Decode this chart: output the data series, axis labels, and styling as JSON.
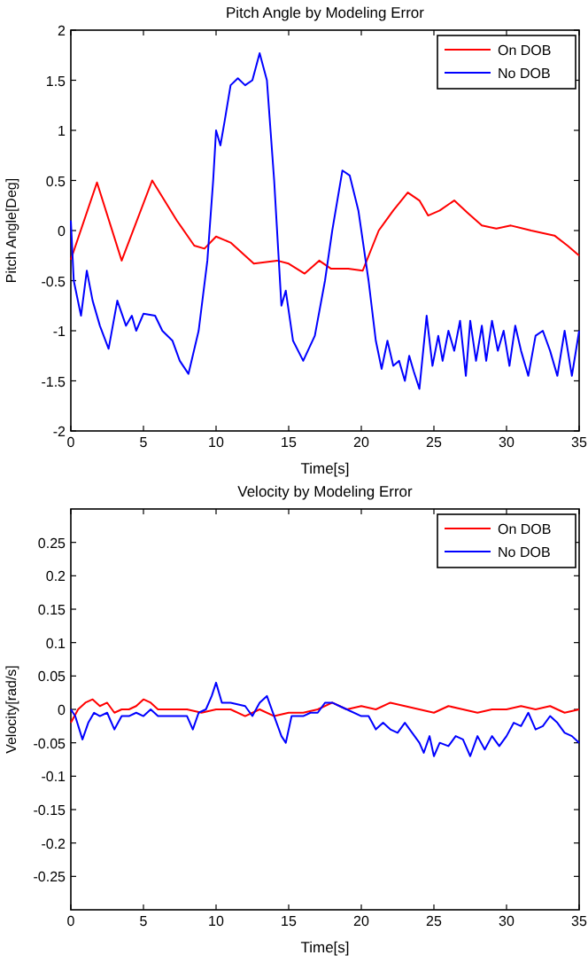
{
  "chart_data": [
    {
      "type": "line",
      "title": "Pitch Angle by Modeling Error",
      "xlabel": "Time[s]",
      "ylabel": "Pitch Angle[Deg]",
      "xlim": [
        0,
        35
      ],
      "ylim": [
        -2,
        2
      ],
      "xticks": [
        0,
        5,
        10,
        15,
        20,
        25,
        30,
        35
      ],
      "yticks": [
        -2,
        -1.5,
        -1,
        -0.5,
        0,
        0.5,
        1,
        1.5,
        2
      ],
      "grid": false,
      "legend": "top right",
      "series": [
        {
          "name": "On DOB",
          "color": "#ff0000",
          "x": [
            0,
            1.8,
            3.5,
            5.6,
            7.3,
            8.5,
            9.2,
            10,
            11,
            12.6,
            14.2,
            15,
            16.1,
            17.1,
            17.9,
            19.1,
            20.1,
            21.2,
            22.2,
            23.2,
            24,
            24.6,
            25.4,
            26.4,
            27.3,
            28.3,
            29.3,
            30.3,
            31.7,
            33.3,
            34.2,
            35
          ],
          "values": [
            -0.29,
            0.48,
            -0.3,
            0.5,
            0.1,
            -0.15,
            -0.18,
            -0.06,
            -0.12,
            -0.33,
            -0.3,
            -0.33,
            -0.43,
            -0.3,
            -0.38,
            -0.38,
            -0.4,
            0,
            0.2,
            0.38,
            0.3,
            0.15,
            0.2,
            0.3,
            0.18,
            0.05,
            0.02,
            0.05,
            0,
            -0.05,
            -0.15,
            -0.25
          ]
        },
        {
          "name": "No DOB",
          "color": "#0000ff",
          "x": [
            0,
            0.2,
            0.7,
            1.1,
            1.5,
            2,
            2.6,
            3.2,
            3.8,
            4.2,
            4.5,
            5,
            5.8,
            6.3,
            7,
            7.5,
            8.1,
            8.8,
            9.4,
            9.8,
            10,
            10.3,
            10.6,
            11,
            11.5,
            12,
            12.5,
            13,
            13.5,
            14,
            14.5,
            14.8,
            15.3,
            16,
            16.8,
            17.5,
            18,
            18.7,
            19.2,
            19.8,
            20.5,
            21,
            21.4,
            21.8,
            22.2,
            22.6,
            23,
            23.3,
            23.6,
            24,
            24.5,
            24.9,
            25.3,
            25.6,
            26,
            26.4,
            26.8,
            27.2,
            27.5,
            27.9,
            28.3,
            28.6,
            29,
            29.4,
            29.8,
            30.2,
            30.6,
            31,
            31.5,
            32,
            32.5,
            33,
            33.5,
            34,
            34.5,
            35
          ],
          "values": [
            0.1,
            -0.5,
            -0.85,
            -0.4,
            -0.7,
            -0.95,
            -1.18,
            -0.7,
            -0.95,
            -0.85,
            -1,
            -0.83,
            -0.85,
            -1,
            -1.1,
            -1.3,
            -1.43,
            -1,
            -0.3,
            0.5,
            1,
            0.85,
            1.1,
            1.45,
            1.52,
            1.45,
            1.5,
            1.77,
            1.5,
            0.5,
            -0.75,
            -0.6,
            -1.1,
            -1.3,
            -1.05,
            -0.5,
            0,
            0.6,
            0.55,
            0.2,
            -0.5,
            -1.1,
            -1.38,
            -1.1,
            -1.35,
            -1.3,
            -1.5,
            -1.25,
            -1.4,
            -1.58,
            -0.85,
            -1.35,
            -1.05,
            -1.3,
            -1,
            -1.2,
            -0.9,
            -1.45,
            -0.9,
            -1.3,
            -0.95,
            -1.3,
            -0.9,
            -1.2,
            -1,
            -1.35,
            -0.95,
            -1.2,
            -1.45,
            -1.05,
            -1,
            -1.2,
            -1.45,
            -1,
            -1.45,
            -1
          ]
        }
      ]
    },
    {
      "type": "line",
      "title": "Velocity by Modeling Error",
      "xlabel": "Time[s]",
      "ylabel": "Velocity[rad/s]",
      "xlim": [
        0,
        35
      ],
      "ylim": [
        -0.3,
        0.3
      ],
      "xticks": [
        0,
        5,
        10,
        15,
        20,
        25,
        30,
        35
      ],
      "yticks": [
        -0.25,
        -0.2,
        -0.15,
        -0.1,
        -0.05,
        0,
        0.05,
        0.1,
        0.15,
        0.2,
        0.25
      ],
      "grid": false,
      "legend": "top right",
      "series": [
        {
          "name": "On DOB",
          "color": "#ff0000",
          "x": [
            0,
            0.5,
            1,
            1.5,
            2,
            2.5,
            3,
            3.5,
            4,
            4.5,
            5,
            5.5,
            6,
            7,
            8,
            9,
            10,
            11,
            12,
            13,
            14,
            15,
            16,
            17,
            18,
            19,
            20,
            21,
            22,
            23,
            24,
            25,
            26,
            27,
            28,
            29,
            30,
            31,
            32,
            33,
            34,
            35
          ],
          "values": [
            -0.02,
            0,
            0.01,
            0.015,
            0.005,
            0.01,
            -0.005,
            0,
            0,
            0.005,
            0.015,
            0.01,
            0,
            0,
            0,
            -0.005,
            0,
            0,
            -0.01,
            0,
            -0.01,
            -0.005,
            -0.005,
            0,
            0.01,
            0,
            0.005,
            0,
            0.01,
            0.005,
            0,
            -0.005,
            0.005,
            0,
            -0.005,
            0,
            0,
            0.005,
            0,
            0.005,
            -0.005,
            0
          ]
        },
        {
          "name": "No DOB",
          "color": "#0000ff",
          "x": [
            0,
            0.3,
            0.8,
            1.2,
            1.6,
            2,
            2.5,
            3,
            3.5,
            4,
            4.5,
            5,
            5.5,
            6,
            7,
            8,
            8.4,
            8.8,
            9.3,
            9.7,
            10,
            10.4,
            11,
            12,
            12.5,
            13,
            13.5,
            14,
            14.5,
            14.8,
            15.2,
            16,
            16.5,
            17,
            17.5,
            18,
            18.5,
            19,
            20,
            20.5,
            21,
            21.5,
            22,
            22.5,
            23,
            23.5,
            24,
            24.3,
            24.7,
            25,
            25.4,
            26,
            26.5,
            27,
            27.5,
            28,
            28.5,
            29,
            29.5,
            30,
            30.5,
            31,
            31.5,
            32,
            32.5,
            33,
            33.5,
            34,
            34.5,
            35
          ],
          "values": [
            0,
            -0.01,
            -0.045,
            -0.02,
            -0.005,
            -0.01,
            -0.005,
            -0.03,
            -0.01,
            -0.01,
            -0.005,
            -0.01,
            0,
            -0.01,
            -0.01,
            -0.01,
            -0.03,
            -0.005,
            0,
            0.02,
            0.04,
            0.01,
            0.01,
            0.005,
            -0.01,
            0.01,
            0.02,
            -0.01,
            -0.04,
            -0.05,
            -0.01,
            -0.01,
            -0.005,
            -0.005,
            0.01,
            0.01,
            0.005,
            0,
            -0.01,
            -0.01,
            -0.03,
            -0.02,
            -0.03,
            -0.035,
            -0.02,
            -0.035,
            -0.05,
            -0.065,
            -0.04,
            -0.07,
            -0.05,
            -0.055,
            -0.04,
            -0.045,
            -0.07,
            -0.04,
            -0.06,
            -0.04,
            -0.055,
            -0.04,
            -0.02,
            -0.025,
            -0.005,
            -0.03,
            -0.025,
            -0.01,
            -0.02,
            -0.035,
            -0.04,
            -0.05
          ]
        }
      ]
    }
  ]
}
